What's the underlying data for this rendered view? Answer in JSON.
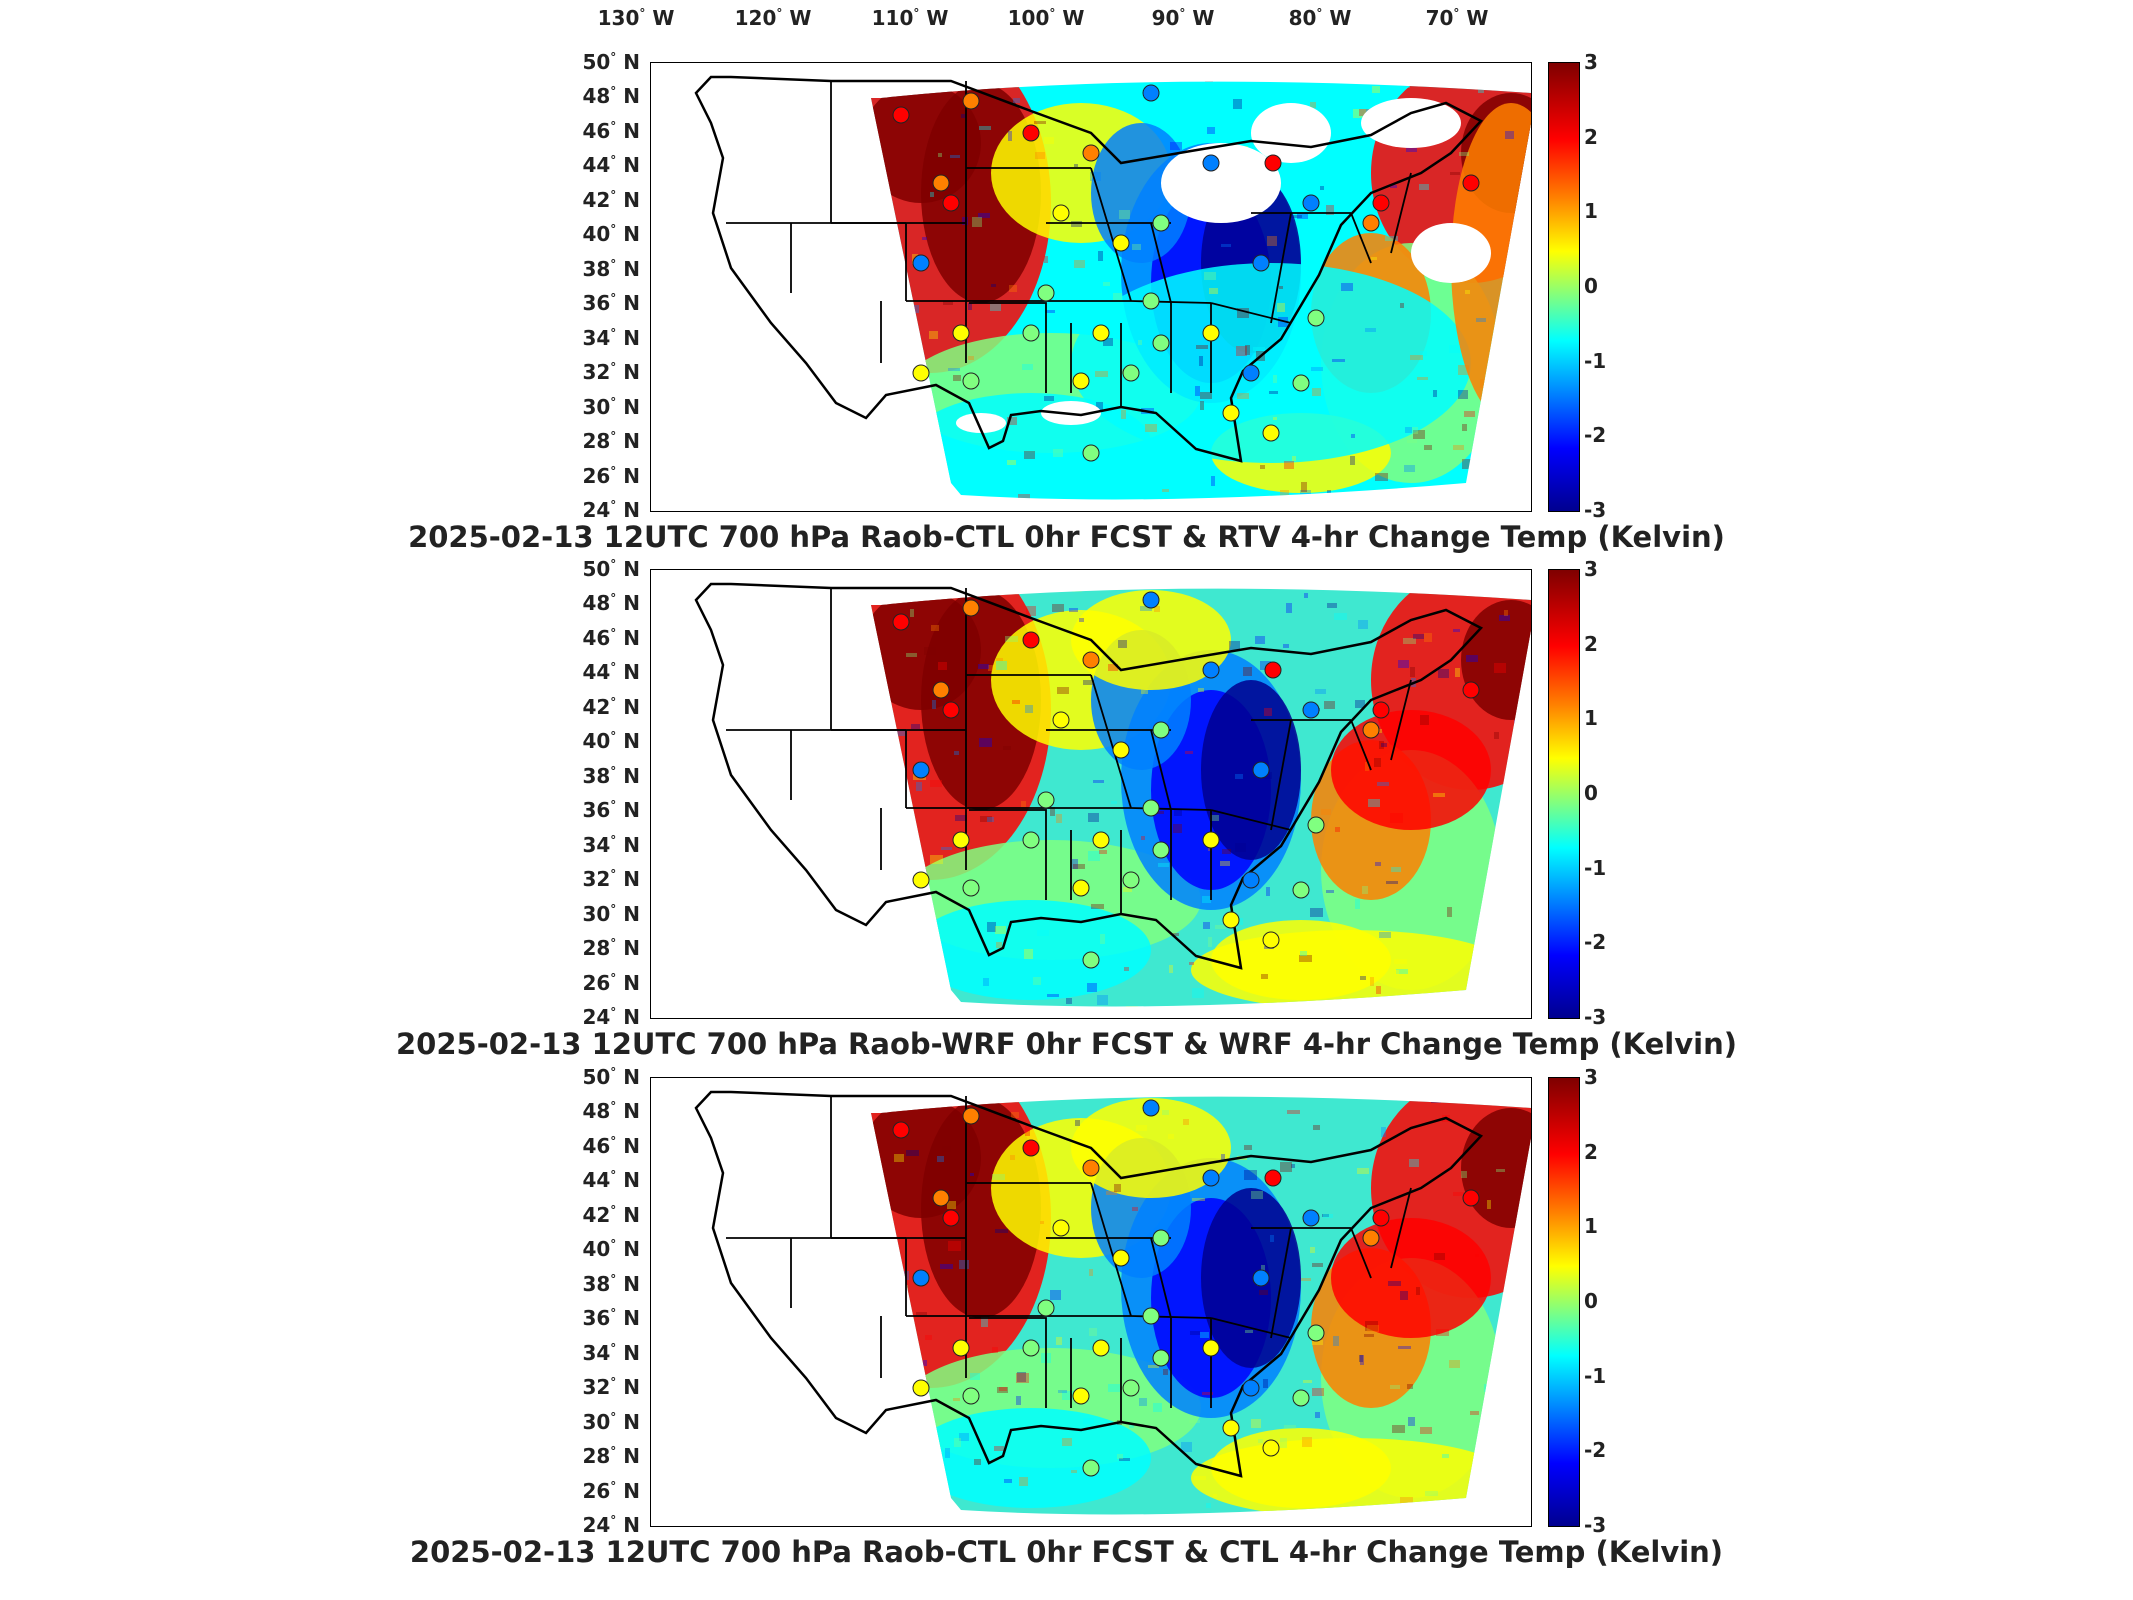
{
  "longitude_labels": [
    {
      "deg": "130",
      "dir": "W"
    },
    {
      "deg": "120",
      "dir": "W"
    },
    {
      "deg": "110",
      "dir": "W"
    },
    {
      "deg": "100",
      "dir": "W"
    },
    {
      "deg": "90",
      "dir": "W"
    },
    {
      "deg": "80",
      "dir": "W"
    },
    {
      "deg": "70",
      "dir": "W"
    }
  ],
  "latitude_labels": [
    {
      "deg": "50",
      "dir": "N"
    },
    {
      "deg": "48",
      "dir": "N"
    },
    {
      "deg": "46",
      "dir": "N"
    },
    {
      "deg": "44",
      "dir": "N"
    },
    {
      "deg": "42",
      "dir": "N"
    },
    {
      "deg": "40",
      "dir": "N"
    },
    {
      "deg": "38",
      "dir": "N"
    },
    {
      "deg": "36",
      "dir": "N"
    },
    {
      "deg": "34",
      "dir": "N"
    },
    {
      "deg": "32",
      "dir": "N"
    },
    {
      "deg": "30",
      "dir": "N"
    },
    {
      "deg": "28",
      "dir": "N"
    },
    {
      "deg": "26",
      "dir": "N"
    },
    {
      "deg": "24",
      "dir": "N"
    }
  ],
  "colorbar_ticks": [
    "3",
    "2",
    "1",
    "0",
    "-1",
    "-2",
    "-3"
  ],
  "colors": {
    "scale": [
      "#00008f",
      "#0000ff",
      "#0080ff",
      "#00ffff",
      "#80ff80",
      "#ffff00",
      "#ff8000",
      "#ff0000",
      "#7f0000"
    ]
  },
  "panels": [
    {
      "title": "2025-02-13 12UTC 700 hPa Raob-CTL 0hr FCST & RTV 4-hr Change Temp (Kelvin)",
      "variant": "rtv"
    },
    {
      "title": "2025-02-13 12UTC 700 hPa Raob-WRF 0hr FCST & WRF 4-hr Change Temp (Kelvin)",
      "variant": "wrf"
    },
    {
      "title": "2025-02-13 12UTC 700 hPa Raob-CTL 0hr FCST & CTL 4-hr Change Temp (Kelvin)",
      "variant": "ctl"
    }
  ]
}
